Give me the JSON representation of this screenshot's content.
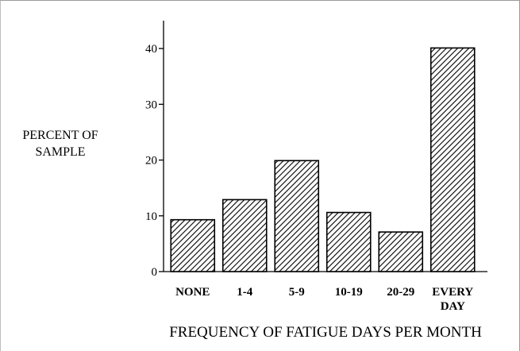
{
  "chart_data": {
    "type": "bar",
    "title": "",
    "ylabel": "PERCENT OF SAMPLE",
    "xlabel": "FREQUENCY OF FATIGUE DAYS PER MONTH",
    "categories": [
      "NONE",
      "1-4",
      "5-9",
      "10-19",
      "20-29",
      "EVERY DAY"
    ],
    "values": [
      9.3,
      12.9,
      19.9,
      10.6,
      7.1,
      40.1
    ],
    "ylim": [
      0,
      45
    ],
    "yticks": [
      0,
      10,
      20,
      30,
      40
    ],
    "grid": false,
    "legend": "none",
    "bar_fill": "diagonal-hatch",
    "colors": {
      "bar_stroke": "#000000",
      "hatch": "#000000",
      "axis": "#000000"
    }
  }
}
